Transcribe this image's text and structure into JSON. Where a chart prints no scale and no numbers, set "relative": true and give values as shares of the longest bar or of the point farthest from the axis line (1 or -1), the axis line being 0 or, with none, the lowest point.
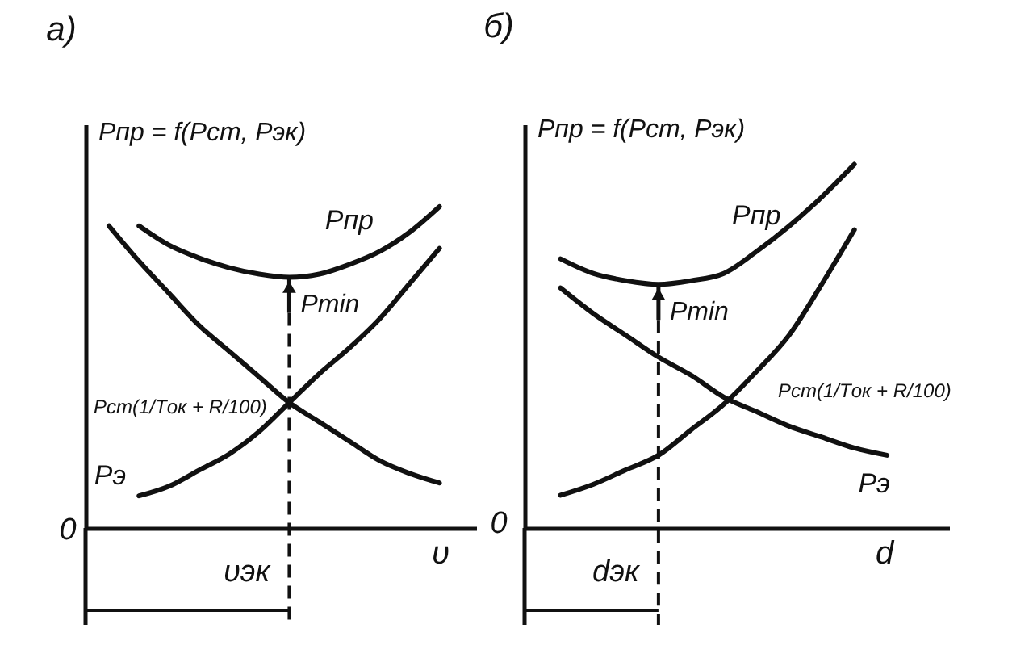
{
  "chart_data": [
    {
      "type": "line",
      "title": "а)",
      "ylabel": "Pпр = f(Pст, Pэк)",
      "xlabel": "υ",
      "relative": true,
      "categories": [
        null,
        null,
        null,
        null,
        null,
        null,
        null,
        null,
        null,
        null,
        null,
        null
      ],
      "series": [
        {
          "name": "Pпр",
          "color": "#111111",
          "values": [
            null,
            0.94,
            0.88,
            0.84,
            0.81,
            0.79,
            0.78,
            0.79,
            0.82,
            0.86,
            0.92,
            1.0
          ]
        },
        {
          "name": "Pст(1/Tок + R/100)",
          "color": "#111111",
          "values": [
            0.94,
            0.83,
            0.73,
            0.63,
            0.55,
            0.47,
            0.39,
            0.33,
            0.27,
            0.21,
            0.17,
            0.14
          ]
        },
        {
          "name": "Pэ",
          "color": "#111111",
          "values": [
            null,
            0.1,
            0.13,
            0.18,
            0.23,
            0.3,
            0.39,
            0.48,
            0.56,
            0.65,
            0.76,
            0.87
          ]
        }
      ],
      "annotations": [
        "Pmin",
        "υэк",
        "0"
      ]
    },
    {
      "type": "line",
      "title": "б)",
      "ylabel": "Pпр = f(Pст, Pэк)",
      "xlabel": "d",
      "relative": true,
      "categories": [
        null,
        null,
        null,
        null,
        null,
        null,
        null,
        null,
        null,
        null,
        null,
        null
      ],
      "series": [
        {
          "name": "Pпр",
          "color": "#111111",
          "values": [
            0.74,
            0.7,
            0.68,
            0.67,
            0.68,
            0.7,
            0.76,
            0.83,
            0.91,
            1.0,
            null,
            null
          ]
        },
        {
          "name": "Pст(1/Tок + R/100)",
          "color": "#111111",
          "values": [
            0.09,
            0.12,
            0.16,
            0.2,
            0.27,
            0.34,
            0.43,
            0.53,
            0.67,
            0.82,
            null,
            null
          ]
        },
        {
          "name": "Pэ",
          "color": "#111111",
          "values": [
            0.66,
            0.59,
            0.53,
            0.47,
            0.42,
            0.36,
            0.32,
            0.28,
            0.25,
            0.22,
            0.2,
            null
          ]
        }
      ],
      "annotations": [
        "Pmin",
        "dэк",
        "0"
      ]
    }
  ]
}
